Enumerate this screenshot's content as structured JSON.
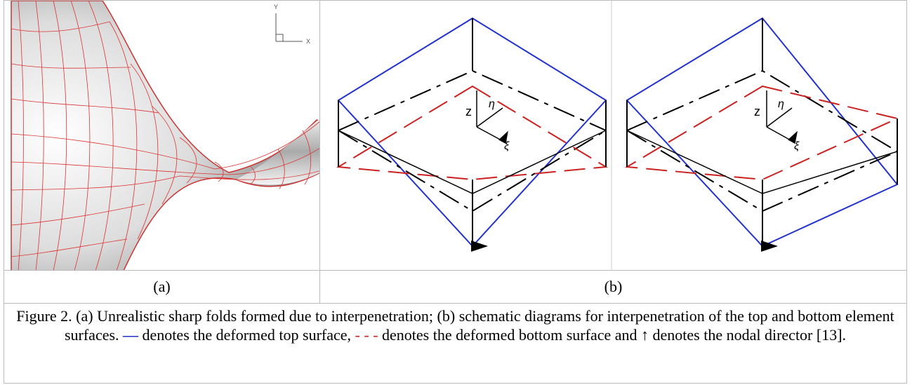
{
  "panel_a": {
    "axis_y": "Y",
    "axis_x": "X",
    "label": "(a)"
  },
  "panel_b": {
    "left": {
      "z": "z",
      "eta": "η",
      "xi": "ξ"
    },
    "right": {
      "z": "z",
      "eta": "η",
      "xi": "ξ"
    },
    "label": "(b)"
  },
  "caption": {
    "segments": [
      "Figure 2. (a) Unrealistic sharp folds formed due to interpenetration; (b) schematic diagrams for interpenetration of the top and bottom element surfaces.",
      "—",
      "denotes the deformed top surface,",
      "- - -",
      "denotes the deformed bottom surface and",
      "↑",
      "denotes the nodal director [13]."
    ]
  }
}
